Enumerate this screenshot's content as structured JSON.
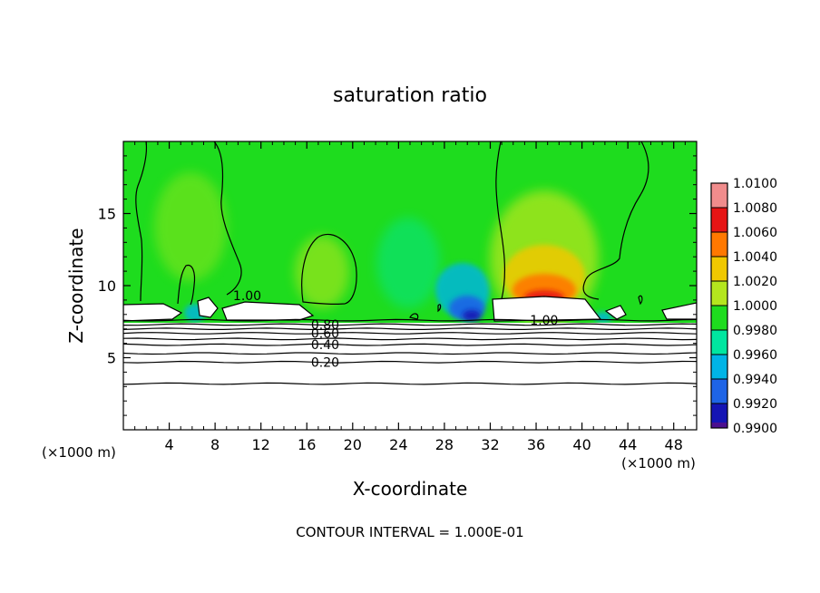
{
  "chart_data": {
    "type": "heatmap",
    "title": "saturation ratio",
    "xlabel": "X-coordinate",
    "ylabel": "Z-coordinate",
    "x_unit_left": "(×1000 m)",
    "x_unit_right": "(×1000 m)",
    "xlim": [
      0,
      50
    ],
    "ylim": [
      0,
      20
    ],
    "x_ticks": [
      4,
      8,
      12,
      16,
      20,
      24,
      28,
      32,
      36,
      40,
      44,
      48
    ],
    "x_tick_labels": [
      "4",
      "8",
      "12",
      "16",
      "20",
      "24",
      "28",
      "32",
      "36",
      "40",
      "44",
      "48"
    ],
    "y_ticks": [
      5,
      10,
      15
    ],
    "y_tick_labels": [
      "5",
      "10",
      "15"
    ],
    "footer": "CONTOUR INTERVAL = 1.000E-01",
    "colorbar": {
      "levels": [
        0.99,
        0.992,
        0.994,
        0.996,
        0.998,
        1.0,
        1.002,
        1.004,
        1.006,
        1.008,
        1.01
      ],
      "labels": [
        "0.9900",
        "0.9920",
        "0.9940",
        "0.9960",
        "0.9980",
        "1.0000",
        "1.0020",
        "1.0040",
        "1.0060",
        "1.0080",
        "1.0100"
      ],
      "colors": [
        "#4b0f8f",
        "#1414b4",
        "#1e64e6",
        "#00b4e6",
        "#00e6a0",
        "#1edc1e",
        "#b4e61e",
        "#f0c800",
        "#ff7800",
        "#e61414",
        "#f08c8c"
      ]
    },
    "contour_labels": [
      {
        "text": "1.00",
        "x": 10.8,
        "z": 9.3
      },
      {
        "text": "1.00",
        "x": 36.7,
        "z": 7.6
      },
      {
        "text": "0.80",
        "x": 17.6,
        "z": 7.3
      },
      {
        "text": "0.60",
        "x": 17.6,
        "z": 6.7
      },
      {
        "text": "0.40",
        "x": 17.6,
        "z": 5.9
      },
      {
        "text": "0.20",
        "x": 17.6,
        "z": 4.7
      }
    ],
    "contour_levels_below_cloud": [
      {
        "value": 0.9,
        "z": 7.6
      },
      {
        "value": 0.8,
        "z": 7.3
      },
      {
        "value": 0.7,
        "z": 7.0
      },
      {
        "value": 0.6,
        "z": 6.7
      },
      {
        "value": 0.5,
        "z": 6.3
      },
      {
        "value": 0.4,
        "z": 5.9
      },
      {
        "value": 0.3,
        "z": 5.3
      },
      {
        "value": 0.2,
        "z": 4.7
      },
      {
        "value": 0.1,
        "z": 3.2
      }
    ]
  }
}
